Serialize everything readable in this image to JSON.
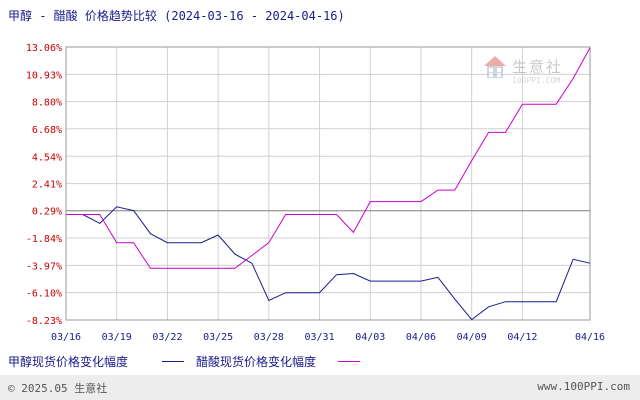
{
  "chart_data": {
    "type": "line",
    "title": "甲醇 - 醋酸 价格趋势比较 (2024-03-16 - 2024-04-16)",
    "ylim": [
      -8.23,
      13.06
    ],
    "y_ticks": [
      "13.06%",
      "10.93%",
      "8.80%",
      "6.68%",
      "4.54%",
      "2.41%",
      "0.29%",
      "-1.84%",
      "-3.97%",
      "-6.10%",
      "-8.23%"
    ],
    "y_tick_values": [
      13.06,
      10.93,
      8.8,
      6.68,
      4.54,
      2.41,
      0.29,
      -1.84,
      -3.97,
      -6.1,
      -8.23
    ],
    "x_ticks": [
      "03/16",
      "03/19",
      "03/22",
      "03/25",
      "03/28",
      "03/31",
      "04/03",
      "04/06",
      "04/09",
      "04/12",
      "04/16"
    ],
    "x_tick_days": [
      0,
      3,
      6,
      9,
      12,
      15,
      18,
      21,
      24,
      27,
      31
    ],
    "grid": true,
    "legend_position": "bottom-left",
    "series": [
      {
        "name": "甲醇现货价格变化幅度",
        "color": "#1a1a8c",
        "points": [
          [
            0,
            0
          ],
          [
            1,
            0
          ],
          [
            2,
            -0.7
          ],
          [
            3,
            0.6
          ],
          [
            4,
            0.3
          ],
          [
            5,
            -1.5
          ],
          [
            6,
            -2.2
          ],
          [
            7,
            -2.2
          ],
          [
            8,
            -2.2
          ],
          [
            9,
            -1.6
          ],
          [
            10,
            -3.1
          ],
          [
            11,
            -3.8
          ],
          [
            12,
            -6.7
          ],
          [
            13,
            -6.1
          ],
          [
            14,
            -6.1
          ],
          [
            15,
            -6.1
          ],
          [
            16,
            -4.7
          ],
          [
            17,
            -4.6
          ],
          [
            18,
            -5.2
          ],
          [
            19,
            -5.2
          ],
          [
            20,
            -5.2
          ],
          [
            21,
            -5.2
          ],
          [
            22,
            -4.9
          ],
          [
            23,
            -6.6
          ],
          [
            24,
            -8.2
          ],
          [
            25,
            -7.2
          ],
          [
            26,
            -6.8
          ],
          [
            27,
            -6.8
          ],
          [
            28,
            -6.8
          ],
          [
            29,
            -6.8
          ],
          [
            30,
            -3.5
          ],
          [
            31,
            -3.8
          ]
        ]
      },
      {
        "name": "醋酸现货价格变化幅度",
        "color": "#cc00cc",
        "points": [
          [
            0,
            0
          ],
          [
            1,
            0
          ],
          [
            2,
            0
          ],
          [
            3,
            -2.2
          ],
          [
            4,
            -2.2
          ],
          [
            5,
            -4.2
          ],
          [
            6,
            -4.2
          ],
          [
            7,
            -4.2
          ],
          [
            8,
            -4.2
          ],
          [
            9,
            -4.2
          ],
          [
            10,
            -4.2
          ],
          [
            11,
            -3.2
          ],
          [
            12,
            -2.2
          ],
          [
            13,
            0
          ],
          [
            14,
            0
          ],
          [
            15,
            0
          ],
          [
            16,
            0
          ],
          [
            17,
            -1.4
          ],
          [
            18,
            1.0
          ],
          [
            19,
            1.0
          ],
          [
            20,
            1.0
          ],
          [
            21,
            1.0
          ],
          [
            22,
            1.9
          ],
          [
            23,
            1.9
          ],
          [
            24,
            4.2
          ],
          [
            25,
            6.4
          ],
          [
            26,
            6.4
          ],
          [
            27,
            8.6
          ],
          [
            28,
            8.6
          ],
          [
            29,
            8.6
          ],
          [
            30,
            10.6
          ],
          [
            31,
            13.0
          ]
        ]
      }
    ]
  },
  "footer": {
    "copyright": "© 2025.05 生意社",
    "url": "www.100PPI.com"
  },
  "watermark": {
    "name": "生意社",
    "url": "100PPI.COM"
  }
}
